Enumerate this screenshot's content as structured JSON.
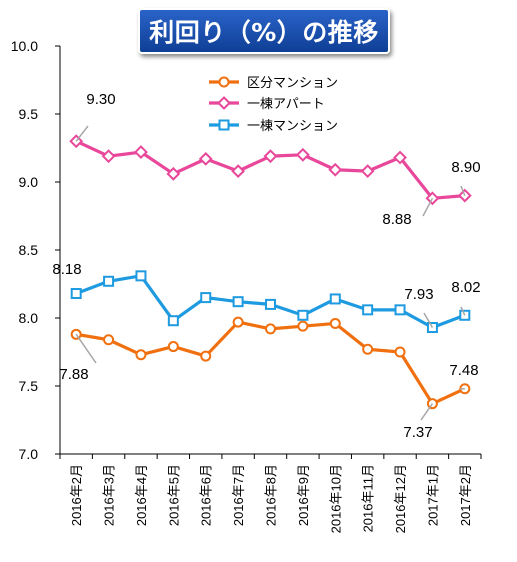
{
  "chart_data": {
    "type": "line",
    "title": "利回り（%）の推移",
    "categories": [
      "2016年2月",
      "2016年3月",
      "2016年4月",
      "2016年5月",
      "2016年6月",
      "2016年7月",
      "2016年8月",
      "2016年9月",
      "2016年10月",
      "2016年11月",
      "2016年12月",
      "2017年1月",
      "2017年2月"
    ],
    "ylim": [
      7.0,
      10.0
    ],
    "yticks": [
      "7.0",
      "7.5",
      "8.0",
      "8.5",
      "9.0",
      "9.5",
      "10.0"
    ],
    "grid": false,
    "legend_position": "top-center",
    "series": [
      {
        "name": "区分マンション",
        "color": "#f07010",
        "marker": "circle",
        "values": [
          7.88,
          7.84,
          7.73,
          7.79,
          7.72,
          7.97,
          7.92,
          7.94,
          7.96,
          7.77,
          7.75,
          7.37,
          7.48
        ],
        "labels": [
          {
            "index": 0,
            "text": "7.88"
          },
          {
            "index": 11,
            "text": "7.37"
          },
          {
            "index": 12,
            "text": "7.48"
          }
        ]
      },
      {
        "name": "一棟アパート",
        "color": "#e8479a",
        "marker": "diamond",
        "values": [
          9.3,
          9.19,
          9.22,
          9.06,
          9.17,
          9.08,
          9.19,
          9.2,
          9.09,
          9.08,
          9.18,
          8.88,
          8.9
        ],
        "labels": [
          {
            "index": 0,
            "text": "9.30"
          },
          {
            "index": 11,
            "text": "8.88"
          },
          {
            "index": 12,
            "text": "8.90"
          }
        ]
      },
      {
        "name": "一棟マンション",
        "color": "#1e9ae0",
        "marker": "square",
        "values": [
          8.18,
          8.27,
          8.31,
          7.98,
          8.15,
          8.12,
          8.1,
          8.02,
          8.14,
          8.06,
          8.06,
          7.93,
          8.02
        ],
        "labels": [
          {
            "index": 0,
            "text": "8.18"
          },
          {
            "index": 11,
            "text": "7.93"
          },
          {
            "index": 12,
            "text": "8.02"
          }
        ]
      }
    ]
  }
}
